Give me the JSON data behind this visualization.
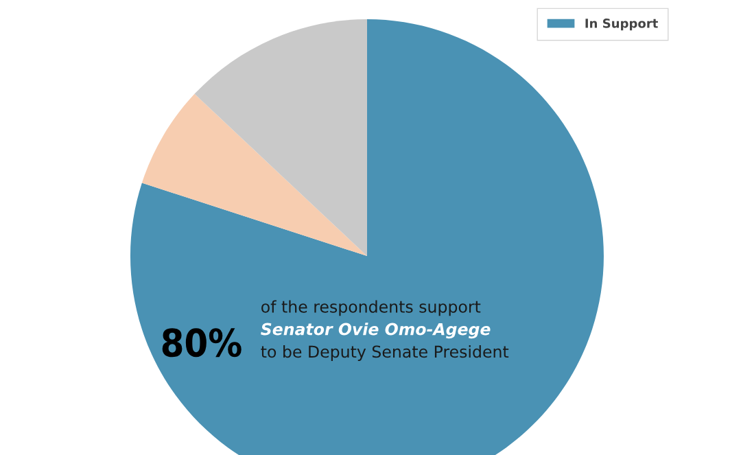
{
  "chart_data": {
    "type": "pie",
    "categories": [
      "In Support",
      null,
      null
    ],
    "values": [
      80,
      7,
      13
    ],
    "colors": [
      "#4a92b4",
      "#f7cdb0",
      "#c9c9c9"
    ],
    "value_labels": [
      "80%",
      null,
      null
    ],
    "annotations": [
      "of the respondents support",
      "Senator Ovie Omo-Agege",
      "to be Deputy Senate President"
    ],
    "legend": "top right"
  }
}
